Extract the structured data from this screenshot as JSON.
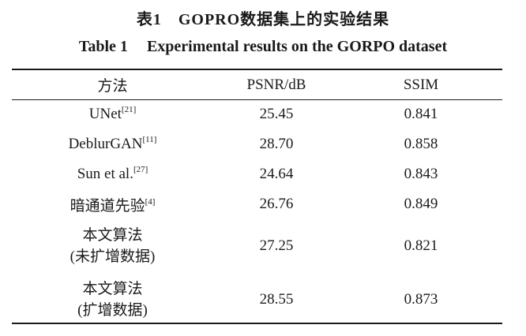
{
  "title": {
    "cn": "表1　GOPRO数据集上的实验结果",
    "en_number": "Table 1",
    "en_text": "Experimental results on the GORPO dataset"
  },
  "headers": [
    "方法",
    "PSNR/dB",
    "SSIM"
  ],
  "rows": [
    {
      "method": "UNet",
      "ref": "[21]",
      "psnr": "25.45",
      "ssim": "0.841"
    },
    {
      "method": "DeblurGAN",
      "ref": "[11]",
      "psnr": "28.70",
      "ssim": "0.858"
    },
    {
      "method": "Sun et al.",
      "ref": "[27]",
      "psnr": "24.64",
      "ssim": "0.843"
    },
    {
      "method": "暗通道先验",
      "ref": "[4]",
      "psnr": "26.76",
      "ssim": "0.849"
    },
    {
      "method_line1": "本文算法",
      "method_line2": "(未扩增数据)",
      "psnr": "27.25",
      "ssim": "0.821"
    },
    {
      "method_line1": "本文算法",
      "method_line2": "(扩增数据)",
      "psnr": "28.55",
      "ssim": "0.873"
    }
  ]
}
